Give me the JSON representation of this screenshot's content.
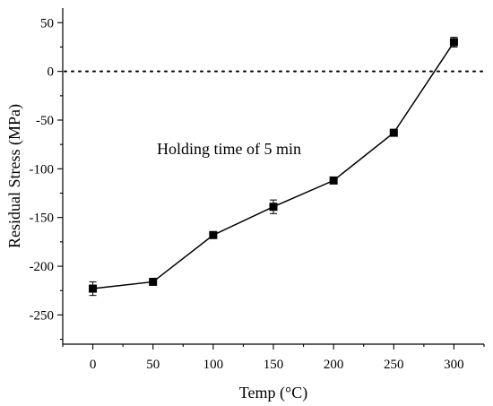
{
  "chart_data": {
    "type": "line",
    "xlabel": "Temp (°C)",
    "ylabel": "Residual Stress (MPa)",
    "xlim": [
      -25,
      325
    ],
    "ylim": [
      -280,
      65
    ],
    "xticks": [
      0,
      50,
      100,
      150,
      200,
      250,
      300
    ],
    "yticks": [
      -250,
      -200,
      -150,
      -100,
      -50,
      0,
      50
    ],
    "x": [
      0,
      50,
      100,
      150,
      200,
      250,
      300
    ],
    "series": [
      {
        "values": [
          -223,
          -216,
          -168,
          -139,
          -112,
          -63,
          30
        ],
        "errors": [
          7,
          2,
          2,
          7,
          3,
          3,
          5
        ],
        "color": "#000000",
        "marker": "square"
      }
    ],
    "reference_line": {
      "y": 0,
      "style": "dotted"
    },
    "annotation": "Holding time of 5 min",
    "grid": false,
    "legend": "none"
  }
}
